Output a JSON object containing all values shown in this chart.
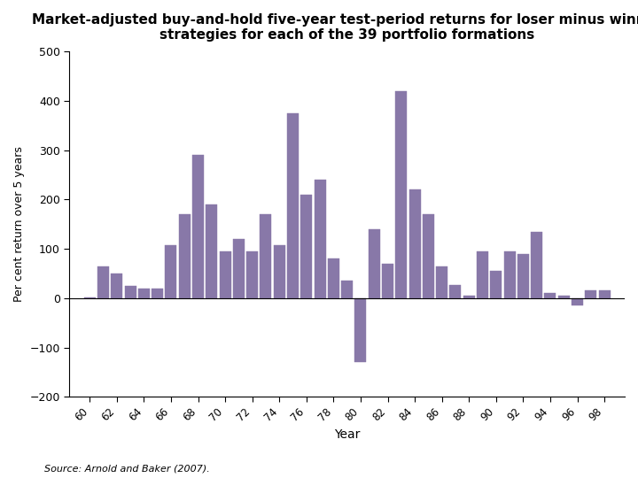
{
  "title": "Market-adjusted buy-and-hold five-year test-period returns for loser minus winner\nstrategies for each of the 39 portfolio formations",
  "xlabel": "Year",
  "ylabel": "Per cent return over 5 years",
  "bar_color": "#8878a8",
  "background_color": "#ffffff",
  "source_text": "Source: Arnold and Baker (2007).",
  "ylim": [
    -200,
    500
  ],
  "yticks": [
    -200,
    -100,
    0,
    100,
    200,
    300,
    400,
    500
  ],
  "years": [
    60,
    61,
    62,
    63,
    64,
    65,
    66,
    67,
    68,
    69,
    70,
    71,
    72,
    73,
    74,
    75,
    76,
    77,
    78,
    79,
    80,
    81,
    82,
    83,
    84,
    85,
    86,
    87,
    88,
    89,
    90,
    91,
    92,
    93,
    94,
    95,
    96,
    97,
    98
  ],
  "values": [
    2,
    65,
    50,
    25,
    20,
    20,
    107,
    170,
    290,
    190,
    95,
    120,
    95,
    170,
    107,
    375,
    210,
    240,
    80,
    35,
    -130,
    140,
    70,
    420,
    220,
    170,
    65,
    27,
    5,
    95,
    55,
    95,
    90,
    135,
    10,
    5,
    -15,
    15,
    15
  ]
}
